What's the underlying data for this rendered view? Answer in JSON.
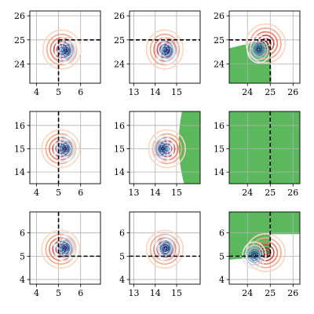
{
  "colors": {
    "feasible_fill": "#5cb85c",
    "boundary_line": "#000000",
    "grid": "#b0b0b0",
    "warm_contours": [
      "#fcd5c0",
      "#f8a98a",
      "#ef7b62",
      "#d6473f",
      "#b2182b"
    ],
    "cool_contours": [
      "#e3e8f2",
      "#c5d3e8",
      "#8fb8da",
      "#4a8cc2",
      "#1f5fa5",
      "#0b3d80"
    ]
  },
  "chart_data": [
    {
      "type": "contour",
      "row": 0,
      "col": 0,
      "xlim": [
        3.7,
        6.9
      ],
      "ylim": [
        23.2,
        26.2
      ],
      "xticks": [
        {
          "v": 4,
          "label": "4"
        },
        {
          "v": 5,
          "label": "5"
        },
        {
          "v": 6,
          "label": "6"
        }
      ],
      "yticks": [
        {
          "v": 24,
          "label": "24"
        },
        {
          "v": 25,
          "label": "25"
        },
        {
          "v": 26,
          "label": "26"
        }
      ],
      "warm_center": [
        5.15,
        24.6
      ],
      "cool_center": [
        5.35,
        24.55
      ],
      "vline": 5,
      "hline": 25,
      "feasible_region": "x>5 & y<25",
      "shaded": false
    },
    {
      "type": "contour",
      "row": 0,
      "col": 1,
      "xlim": [
        12.8,
        16.1
      ],
      "ylim": [
        23.2,
        26.2
      ],
      "xticks": [
        {
          "v": 13,
          "label": "13"
        },
        {
          "v": 14,
          "label": "14"
        },
        {
          "v": 15,
          "label": "15"
        }
      ],
      "yticks": [
        {
          "v": 24,
          "label": "24"
        },
        {
          "v": 25,
          "label": "25"
        },
        {
          "v": 26,
          "label": "26"
        }
      ],
      "warm_center": [
        14.45,
        24.6
      ],
      "cool_center": [
        14.55,
        24.55
      ],
      "vline": null,
      "hline": 25,
      "feasible_region": "y<25",
      "shaded": false
    },
    {
      "type": "contour",
      "row": 0,
      "col": 2,
      "xlim": [
        23.2,
        26.3
      ],
      "ylim": [
        23.2,
        26.2
      ],
      "xticks": [
        {
          "v": 24,
          "label": "24"
        },
        {
          "v": 25,
          "label": "25"
        },
        {
          "v": 26,
          "label": "26"
        }
      ],
      "yticks": [
        {
          "v": 24,
          "label": "24"
        },
        {
          "v": 25,
          "label": "25"
        },
        {
          "v": 26,
          "label": "26"
        }
      ],
      "warm_center": [
        24.8,
        24.85
      ],
      "cool_center": [
        24.5,
        24.6
      ],
      "vline": 25,
      "hline": 25,
      "feasible_region": "x<25 & y<25",
      "shaded": true
    },
    {
      "type": "contour",
      "row": 1,
      "col": 0,
      "xlim": [
        3.7,
        6.9
      ],
      "ylim": [
        13.5,
        16.6
      ],
      "xticks": [
        {
          "v": 4,
          "label": "4"
        },
        {
          "v": 5,
          "label": "5"
        },
        {
          "v": 6,
          "label": "6"
        }
      ],
      "yticks": [
        {
          "v": 14,
          "label": "14"
        },
        {
          "v": 15,
          "label": "15"
        },
        {
          "v": 16,
          "label": "16"
        }
      ],
      "warm_center": [
        5.1,
        15.0
      ],
      "cool_center": [
        5.3,
        15.0
      ],
      "vline": 5,
      "hline": null,
      "feasible_region": "x>5",
      "shaded": false
    },
    {
      "type": "contour",
      "row": 1,
      "col": 1,
      "xlim": [
        12.8,
        16.1
      ],
      "ylim": [
        13.5,
        16.6
      ],
      "xticks": [
        {
          "v": 13,
          "label": "13"
        },
        {
          "v": 14,
          "label": "14"
        },
        {
          "v": 15,
          "label": "15"
        }
      ],
      "yticks": [
        {
          "v": 14,
          "label": "14"
        },
        {
          "v": 15,
          "label": "15"
        },
        {
          "v": 16,
          "label": "16"
        }
      ],
      "warm_center": [
        14.55,
        15.0
      ],
      "cool_center": [
        14.35,
        15.0
      ],
      "vline": null,
      "hline": null,
      "feasible_region": "x>15",
      "shaded": true
    },
    {
      "type": "contour",
      "row": 1,
      "col": 2,
      "xlim": [
        23.2,
        26.3
      ],
      "ylim": [
        13.5,
        16.6
      ],
      "xticks": [
        {
          "v": 24,
          "label": "24"
        },
        {
          "v": 25,
          "label": "25"
        },
        {
          "v": 26,
          "label": "26"
        }
      ],
      "yticks": [
        {
          "v": 14,
          "label": "14"
        },
        {
          "v": 15,
          "label": "15"
        },
        {
          "v": 16,
          "label": "16"
        }
      ],
      "warm_center": null,
      "cool_center": null,
      "vline": 25,
      "hline": null,
      "feasible_region": "all",
      "shaded": true
    },
    {
      "type": "contour",
      "row": 2,
      "col": 0,
      "xlim": [
        3.7,
        6.9
      ],
      "ylim": [
        3.8,
        6.9
      ],
      "xticks": [
        {
          "v": 4,
          "label": "4"
        },
        {
          "v": 5,
          "label": "5"
        },
        {
          "v": 6,
          "label": "6"
        }
      ],
      "yticks": [
        {
          "v": 4,
          "label": "4"
        },
        {
          "v": 5,
          "label": "5"
        },
        {
          "v": 6,
          "label": "6"
        }
      ],
      "warm_center": [
        5.1,
        5.3
      ],
      "cool_center": [
        5.3,
        5.35
      ],
      "vline": 5,
      "hline": 5,
      "feasible_region": "x>5 & y>5",
      "shaded": false
    },
    {
      "type": "contour",
      "row": 2,
      "col": 1,
      "xlim": [
        12.8,
        16.1
      ],
      "ylim": [
        3.8,
        6.9
      ],
      "xticks": [
        {
          "v": 13,
          "label": "13"
        },
        {
          "v": 14,
          "label": "14"
        },
        {
          "v": 15,
          "label": "15"
        }
      ],
      "yticks": [
        {
          "v": 4,
          "label": "4"
        },
        {
          "v": 5,
          "label": "5"
        },
        {
          "v": 6,
          "label": "6"
        }
      ],
      "warm_center": [
        14.45,
        5.3
      ],
      "cool_center": [
        14.5,
        5.35
      ],
      "vline": null,
      "hline": 5,
      "feasible_region": "y>5",
      "shaded": false
    },
    {
      "type": "contour",
      "row": 2,
      "col": 2,
      "xlim": [
        23.2,
        26.3
      ],
      "ylim": [
        3.8,
        6.9
      ],
      "xticks": [
        {
          "v": 24,
          "label": "24"
        },
        {
          "v": 25,
          "label": "25"
        },
        {
          "v": 26,
          "label": "26"
        }
      ],
      "yticks": [
        {
          "v": 4,
          "label": "4"
        },
        {
          "v": 5,
          "label": "5"
        },
        {
          "v": 6,
          "label": "6"
        }
      ],
      "warm_center": [
        24.8,
        5.15
      ],
      "cool_center": [
        24.3,
        5.05
      ],
      "vline": 25,
      "hline": 5,
      "feasible_region": "(x<25 & y>5) | y>6",
      "shaded": true
    }
  ]
}
